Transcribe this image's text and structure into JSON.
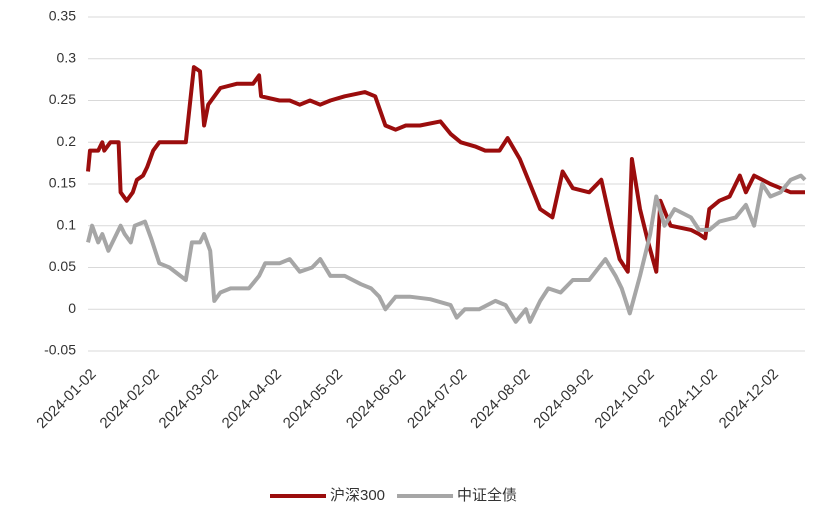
{
  "chart_data": {
    "type": "line",
    "xlim": [
      "2024-01-02",
      "2024-12-19"
    ],
    "xticks": [
      "2024-01-02",
      "2024-02-02",
      "2024-03-02",
      "2024-04-02",
      "2024-05-02",
      "2024-06-02",
      "2024-07-02",
      "2024-08-02",
      "2024-09-02",
      "2024-10-02",
      "2024-11-02",
      "2024-12-02"
    ],
    "ylim": [
      -0.05,
      0.35
    ],
    "yticks": [
      -0.05,
      0,
      0.05,
      0.1,
      0.15,
      0.2,
      0.25,
      0.3,
      0.35
    ],
    "grid": true,
    "legend": "bottom",
    "series": [
      {
        "name": "沪深300",
        "color": "#9b0d0d",
        "x": [
          "2024-01-02",
          "2024-01-03",
          "2024-01-07",
          "2024-01-09",
          "2024-01-10",
          "2024-01-13",
          "2024-01-17",
          "2024-01-18",
          "2024-01-21",
          "2024-01-24",
          "2024-01-26",
          "2024-01-29",
          "2024-01-31",
          "2024-02-03",
          "2024-02-06",
          "2024-02-19",
          "2024-02-23",
          "2024-02-26",
          "2024-02-28",
          "2024-03-01",
          "2024-03-07",
          "2024-03-15",
          "2024-03-23",
          "2024-03-26",
          "2024-03-27",
          "2024-04-05",
          "2024-04-10",
          "2024-04-15",
          "2024-04-20",
          "2024-04-25",
          "2024-04-30",
          "2024-05-07",
          "2024-05-17",
          "2024-05-22",
          "2024-05-27",
          "2024-06-01",
          "2024-06-06",
          "2024-06-13",
          "2024-06-23",
          "2024-06-28",
          "2024-07-03",
          "2024-07-10",
          "2024-07-15",
          "2024-07-22",
          "2024-07-26",
          "2024-08-01",
          "2024-08-06",
          "2024-08-11",
          "2024-08-17",
          "2024-08-22",
          "2024-08-27",
          "2024-09-04",
          "2024-09-10",
          "2024-09-15",
          "2024-09-19",
          "2024-09-23",
          "2024-09-25",
          "2024-09-29",
          "2024-10-03",
          "2024-10-07",
          "2024-10-09",
          "2024-10-14",
          "2024-10-24",
          "2024-10-28",
          "2024-10-31",
          "2024-11-02",
          "2024-11-07",
          "2024-11-12",
          "2024-11-17",
          "2024-11-20",
          "2024-11-24",
          "2024-12-02",
          "2024-12-07",
          "2024-12-12",
          "2024-12-19"
        ],
        "values": [
          0.165,
          0.19,
          0.19,
          0.2,
          0.19,
          0.2,
          0.2,
          0.14,
          0.13,
          0.14,
          0.155,
          0.16,
          0.17,
          0.19,
          0.2,
          0.2,
          0.29,
          0.285,
          0.22,
          0.245,
          0.265,
          0.27,
          0.27,
          0.28,
          0.255,
          0.25,
          0.25,
          0.245,
          0.25,
          0.245,
          0.25,
          0.255,
          0.26,
          0.255,
          0.22,
          0.215,
          0.22,
          0.22,
          0.225,
          0.21,
          0.2,
          0.195,
          0.19,
          0.19,
          0.205,
          0.18,
          0.15,
          0.12,
          0.11,
          0.165,
          0.145,
          0.14,
          0.155,
          0.1,
          0.06,
          0.045,
          0.18,
          0.12,
          0.08,
          0.045,
          0.13,
          0.1,
          0.095,
          0.09,
          0.085,
          0.12,
          0.13,
          0.135,
          0.16,
          0.14,
          0.16,
          0.15,
          0.145,
          0.14,
          0.14
        ]
      },
      {
        "name": "中证全债",
        "color": "#a6a6a6",
        "x": [
          "2024-01-02",
          "2024-01-04",
          "2024-01-07",
          "2024-01-09",
          "2024-01-12",
          "2024-01-15",
          "2024-01-18",
          "2024-01-20",
          "2024-01-23",
          "2024-01-25",
          "2024-01-30",
          "2024-02-02",
          "2024-02-06",
          "2024-02-11",
          "2024-02-19",
          "2024-02-22",
          "2024-02-26",
          "2024-02-28",
          "2024-03-02",
          "2024-03-04",
          "2024-03-07",
          "2024-03-12",
          "2024-03-21",
          "2024-03-26",
          "2024-03-29",
          "2024-04-05",
          "2024-04-10",
          "2024-04-15",
          "2024-04-21",
          "2024-04-25",
          "2024-04-30",
          "2024-05-07",
          "2024-05-15",
          "2024-05-20",
          "2024-05-24",
          "2024-05-27",
          "2024-06-01",
          "2024-06-08",
          "2024-06-18",
          "2024-06-28",
          "2024-07-01",
          "2024-07-05",
          "2024-07-12",
          "2024-07-20",
          "2024-07-25",
          "2024-07-30",
          "2024-08-04",
          "2024-08-06",
          "2024-08-11",
          "2024-08-15",
          "2024-08-21",
          "2024-08-27",
          "2024-09-04",
          "2024-09-12",
          "2024-09-17",
          "2024-09-20",
          "2024-09-24",
          "2024-09-29",
          "2024-10-04",
          "2024-10-07",
          "2024-10-11",
          "2024-10-16",
          "2024-10-24",
          "2024-10-28",
          "2024-11-02",
          "2024-11-07",
          "2024-11-15",
          "2024-11-20",
          "2024-11-24",
          "2024-11-28",
          "2024-12-02",
          "2024-12-07",
          "2024-12-12",
          "2024-12-17",
          "2024-12-19"
        ],
        "values": [
          0.08,
          0.1,
          0.08,
          0.09,
          0.07,
          0.085,
          0.1,
          0.09,
          0.08,
          0.1,
          0.105,
          0.085,
          0.055,
          0.05,
          0.035,
          0.08,
          0.08,
          0.09,
          0.07,
          0.01,
          0.02,
          0.025,
          0.025,
          0.04,
          0.055,
          0.055,
          0.06,
          0.045,
          0.05,
          0.06,
          0.04,
          0.04,
          0.03,
          0.025,
          0.015,
          0.0,
          0.015,
          0.015,
          0.012,
          0.005,
          -0.01,
          0.0,
          0.0,
          0.01,
          0.005,
          -0.015,
          0.0,
          -0.015,
          0.01,
          0.025,
          0.02,
          0.035,
          0.035,
          0.06,
          0.04,
          0.025,
          -0.005,
          0.04,
          0.09,
          0.135,
          0.1,
          0.12,
          0.11,
          0.095,
          0.095,
          0.105,
          0.11,
          0.125,
          0.1,
          0.15,
          0.135,
          0.14,
          0.155,
          0.16,
          0.155
        ]
      }
    ]
  }
}
